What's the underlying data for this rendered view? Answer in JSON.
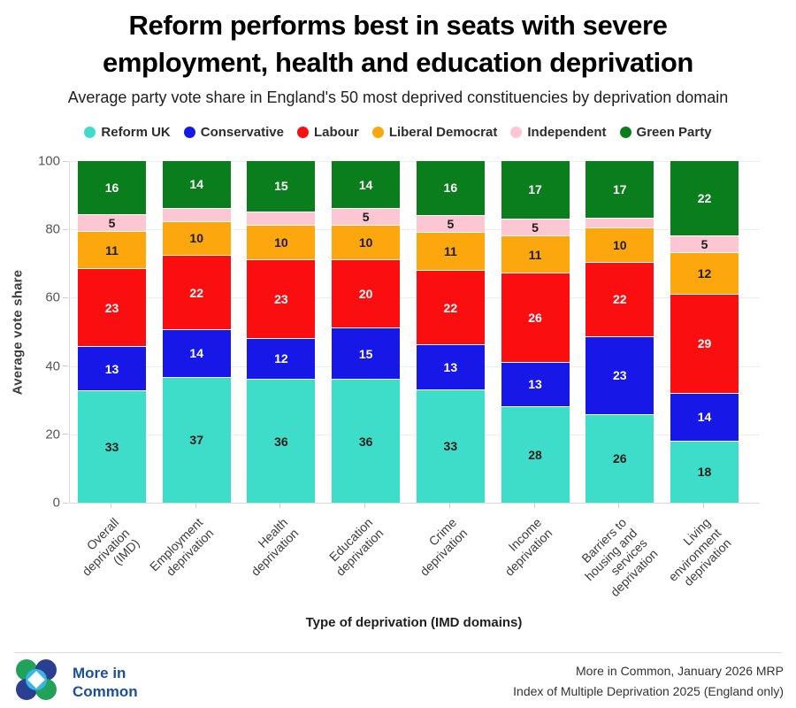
{
  "title": {
    "line1": "Reform performs best in seats with severe",
    "line2": "employment, health and education deprivation"
  },
  "subtitle": "Average party vote share in England's 50 most deprived constituencies by deprivation domain",
  "chart_data": {
    "type": "bar",
    "stacked": true,
    "xlabel": "Type of deprivation (IMD domains)",
    "ylabel": "Average vote share",
    "ylim": [
      0,
      100
    ],
    "yticks": [
      0,
      20,
      40,
      60,
      80,
      100
    ],
    "grid": "horizontal",
    "legend_position": "top",
    "categories": [
      "Overall deprivation (IMD)",
      "Employment deprivation",
      "Health deprivation",
      "Education deprivation",
      "Crime deprivation",
      "Income deprivation",
      "Barriers to housing and services deprivation",
      "Living environment deprivation"
    ],
    "category_lines": [
      [
        "Overall",
        "deprivation",
        "(IMD)"
      ],
      [
        "Employment",
        "deprivation"
      ],
      [
        "Health",
        "deprivation"
      ],
      [
        "Education",
        "deprivation"
      ],
      [
        "Crime",
        "deprivation"
      ],
      [
        "Income",
        "deprivation"
      ],
      [
        "Barriers to",
        "housing and",
        "services",
        "deprivation"
      ],
      [
        "Living",
        "environment",
        "deprivation"
      ]
    ],
    "series": [
      {
        "name": "Reform UK",
        "color": "#3eddc9",
        "text_color": "#1c1c1c",
        "values": [
          33,
          37,
          36,
          36,
          33,
          28,
          26,
          18
        ],
        "labels": [
          "33",
          "37",
          "36",
          "36",
          "33",
          "28",
          "26",
          "18"
        ]
      },
      {
        "name": "Conservative",
        "color": "#1717e8",
        "text_color": "#ffffff",
        "values": [
          13,
          14,
          12,
          15,
          13,
          13,
          23,
          14
        ],
        "labels": [
          "13",
          "14",
          "12",
          "15",
          "13",
          "13",
          "23",
          "14"
        ]
      },
      {
        "name": "Labour",
        "color": "#fa0e10",
        "text_color": "#ffffff",
        "values": [
          23,
          22,
          23,
          20,
          22,
          26,
          22,
          29
        ],
        "labels": [
          "23",
          "22",
          "23",
          "20",
          "22",
          "26",
          "22",
          "29"
        ]
      },
      {
        "name": "Liberal Democrat",
        "color": "#fba70d",
        "text_color": "#1c1c1c",
        "values": [
          11,
          10,
          10,
          10,
          11,
          11,
          10,
          12
        ],
        "labels": [
          "11",
          "10",
          "10",
          "10",
          "11",
          "11",
          "10",
          "12"
        ]
      },
      {
        "name": "Independent",
        "color": "#fcc6d2",
        "text_color": "#1c1c1c",
        "values": [
          5,
          4,
          4,
          5,
          5,
          5,
          3,
          5
        ],
        "labels": [
          "5",
          "",
          "",
          "5",
          "5",
          "5",
          "",
          "5"
        ]
      },
      {
        "name": "Green Party",
        "color": "#0a7d1c",
        "text_color": "#ffffff",
        "values": [
          16,
          14,
          15,
          14,
          16,
          17,
          17,
          22
        ],
        "labels": [
          "16",
          "14",
          "15",
          "14",
          "16",
          "17",
          "17",
          "22"
        ]
      }
    ]
  },
  "footer": {
    "brand_line1": "More in",
    "brand_line2": "Common",
    "source_line1": "More in Common, January 2026 MRP",
    "source_line2": "Index of Multiple Deprivation 2025 (England only)"
  },
  "colors": {
    "brand_blue": "#1c4f9f",
    "logo_green": "#21a159",
    "logo_navy": "#2a3f90",
    "logo_lightblue": "#39b4e6",
    "grid": "#ececec",
    "axis": "#d9d9d9"
  }
}
